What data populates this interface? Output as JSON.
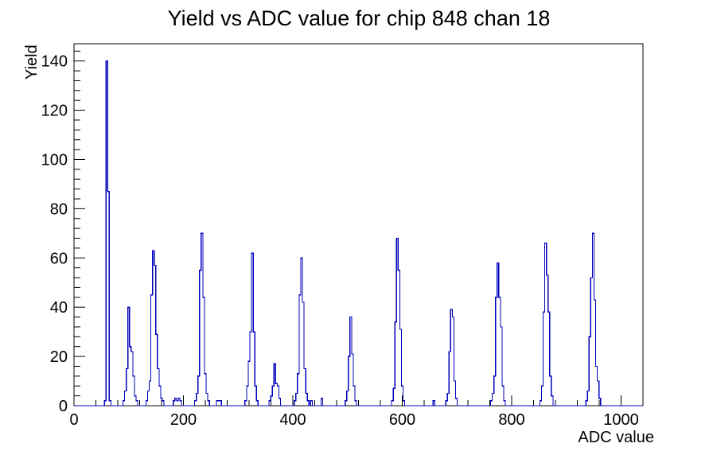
{
  "title": "Yield vs ADC value for chip 848 chan 18",
  "chart_data": {
    "type": "bar",
    "title": "Yield vs ADC value for chip 848 chan 18",
    "xlabel": "ADC value",
    "ylabel": "Yield",
    "xlim": [
      0,
      1040
    ],
    "ylim": [
      0,
      147
    ],
    "x_major_ticks": [
      0,
      200,
      400,
      600,
      800,
      1000
    ],
    "x_minor_step": 40,
    "y_major_ticks": [
      0,
      20,
      40,
      60,
      80,
      100,
      120,
      140
    ],
    "y_minor_step": 4,
    "grid": false,
    "legend": "none",
    "line_color": "#0000bb",
    "frame_color": "#000000",
    "bin_width": 3,
    "bins": [
      [
        57,
        2
      ],
      [
        60,
        140
      ],
      [
        63,
        87
      ],
      [
        66,
        2
      ],
      [
        91,
        2
      ],
      [
        94,
        6
      ],
      [
        97,
        15
      ],
      [
        100,
        40
      ],
      [
        103,
        24
      ],
      [
        106,
        22
      ],
      [
        109,
        12
      ],
      [
        112,
        4
      ],
      [
        115,
        2
      ],
      [
        133,
        2
      ],
      [
        136,
        6
      ],
      [
        139,
        10
      ],
      [
        142,
        45
      ],
      [
        145,
        63
      ],
      [
        148,
        57
      ],
      [
        151,
        29
      ],
      [
        154,
        15
      ],
      [
        157,
        8
      ],
      [
        160,
        3
      ],
      [
        163,
        2
      ],
      [
        183,
        2
      ],
      [
        186,
        3
      ],
      [
        189,
        2
      ],
      [
        192,
        3
      ],
      [
        195,
        2
      ],
      [
        222,
        2
      ],
      [
        225,
        5
      ],
      [
        228,
        12
      ],
      [
        231,
        55
      ],
      [
        234,
        70
      ],
      [
        237,
        44
      ],
      [
        240,
        13
      ],
      [
        243,
        5
      ],
      [
        246,
        2
      ],
      [
        262,
        2
      ],
      [
        265,
        2
      ],
      [
        268,
        2
      ],
      [
        314,
        2
      ],
      [
        317,
        8
      ],
      [
        320,
        18
      ],
      [
        323,
        30
      ],
      [
        326,
        62
      ],
      [
        329,
        30
      ],
      [
        332,
        8
      ],
      [
        335,
        2
      ],
      [
        358,
        2
      ],
      [
        361,
        4
      ],
      [
        364,
        8
      ],
      [
        367,
        17
      ],
      [
        370,
        9
      ],
      [
        373,
        8
      ],
      [
        376,
        3
      ],
      [
        404,
        2
      ],
      [
        407,
        5
      ],
      [
        410,
        13
      ],
      [
        413,
        45
      ],
      [
        416,
        60
      ],
      [
        419,
        42
      ],
      [
        422,
        15
      ],
      [
        425,
        5
      ],
      [
        428,
        2
      ],
      [
        434,
        2
      ],
      [
        453,
        3
      ],
      [
        497,
        2
      ],
      [
        500,
        6
      ],
      [
        503,
        20
      ],
      [
        506,
        36
      ],
      [
        509,
        21
      ],
      [
        512,
        8
      ],
      [
        515,
        2
      ],
      [
        582,
        2
      ],
      [
        585,
        7
      ],
      [
        588,
        34
      ],
      [
        591,
        68
      ],
      [
        594,
        55
      ],
      [
        597,
        31
      ],
      [
        600,
        8
      ],
      [
        603,
        2
      ],
      [
        658,
        2
      ],
      [
        681,
        2
      ],
      [
        684,
        5
      ],
      [
        687,
        22
      ],
      [
        690,
        39
      ],
      [
        693,
        36
      ],
      [
        696,
        10
      ],
      [
        699,
        3
      ],
      [
        763,
        2
      ],
      [
        766,
        5
      ],
      [
        769,
        12
      ],
      [
        772,
        44
      ],
      [
        775,
        58
      ],
      [
        778,
        44
      ],
      [
        781,
        32
      ],
      [
        784,
        8
      ],
      [
        787,
        2
      ],
      [
        853,
        2
      ],
      [
        856,
        8
      ],
      [
        859,
        38
      ],
      [
        862,
        66
      ],
      [
        865,
        53
      ],
      [
        868,
        38
      ],
      [
        871,
        12
      ],
      [
        874,
        4
      ],
      [
        937,
        2
      ],
      [
        940,
        6
      ],
      [
        943,
        28
      ],
      [
        946,
        52
      ],
      [
        949,
        70
      ],
      [
        952,
        43
      ],
      [
        955,
        16
      ],
      [
        958,
        10
      ],
      [
        961,
        3
      ]
    ]
  }
}
